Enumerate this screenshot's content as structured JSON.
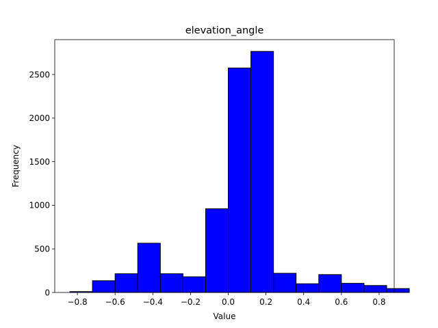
{
  "chart_data": {
    "type": "bar",
    "title": "elevation_angle",
    "xlabel": "Value",
    "ylabel": "Frequency",
    "xlim": [
      -0.92,
      0.88
    ],
    "ylim": [
      0,
      2900
    ],
    "x_ticks": [
      -0.8,
      -0.6,
      -0.4,
      -0.2,
      0.0,
      0.2,
      0.4,
      0.6,
      0.8
    ],
    "x_tick_labels": [
      "−0.8",
      "−0.6",
      "−0.4",
      "−0.2",
      "0.0",
      "0.2",
      "0.4",
      "0.6",
      "0.8"
    ],
    "y_ticks": [
      0,
      500,
      1000,
      1500,
      2000,
      2500
    ],
    "y_tick_labels": [
      "0",
      "500",
      "1000",
      "1500",
      "2000",
      "2500"
    ],
    "grid": false,
    "bar_color": "#0000ff",
    "edge_color": "#000000",
    "bins": [
      {
        "x0": -0.84,
        "x1": -0.72,
        "value": 10
      },
      {
        "x0": -0.72,
        "x1": -0.6,
        "value": 135
      },
      {
        "x0": -0.6,
        "x1": -0.48,
        "value": 215
      },
      {
        "x0": -0.48,
        "x1": -0.36,
        "value": 565
      },
      {
        "x0": -0.36,
        "x1": -0.24,
        "value": 215
      },
      {
        "x0": -0.24,
        "x1": -0.12,
        "value": 180
      },
      {
        "x0": -0.12,
        "x1": 0.0,
        "value": 960
      },
      {
        "x0": 0.0,
        "x1": 0.12,
        "value": 2575
      },
      {
        "x0": 0.12,
        "x1": 0.24,
        "value": 2765
      },
      {
        "x0": 0.24,
        "x1": 0.36,
        "value": 220
      },
      {
        "x0": 0.36,
        "x1": 0.48,
        "value": 100
      },
      {
        "x0": 0.48,
        "x1": 0.6,
        "value": 205
      },
      {
        "x0": 0.6,
        "x1": 0.72,
        "value": 105
      },
      {
        "x0": 0.72,
        "x1": 0.84,
        "value": 80
      },
      {
        "x0": 0.84,
        "x1": 0.96,
        "value": 45
      }
    ]
  }
}
